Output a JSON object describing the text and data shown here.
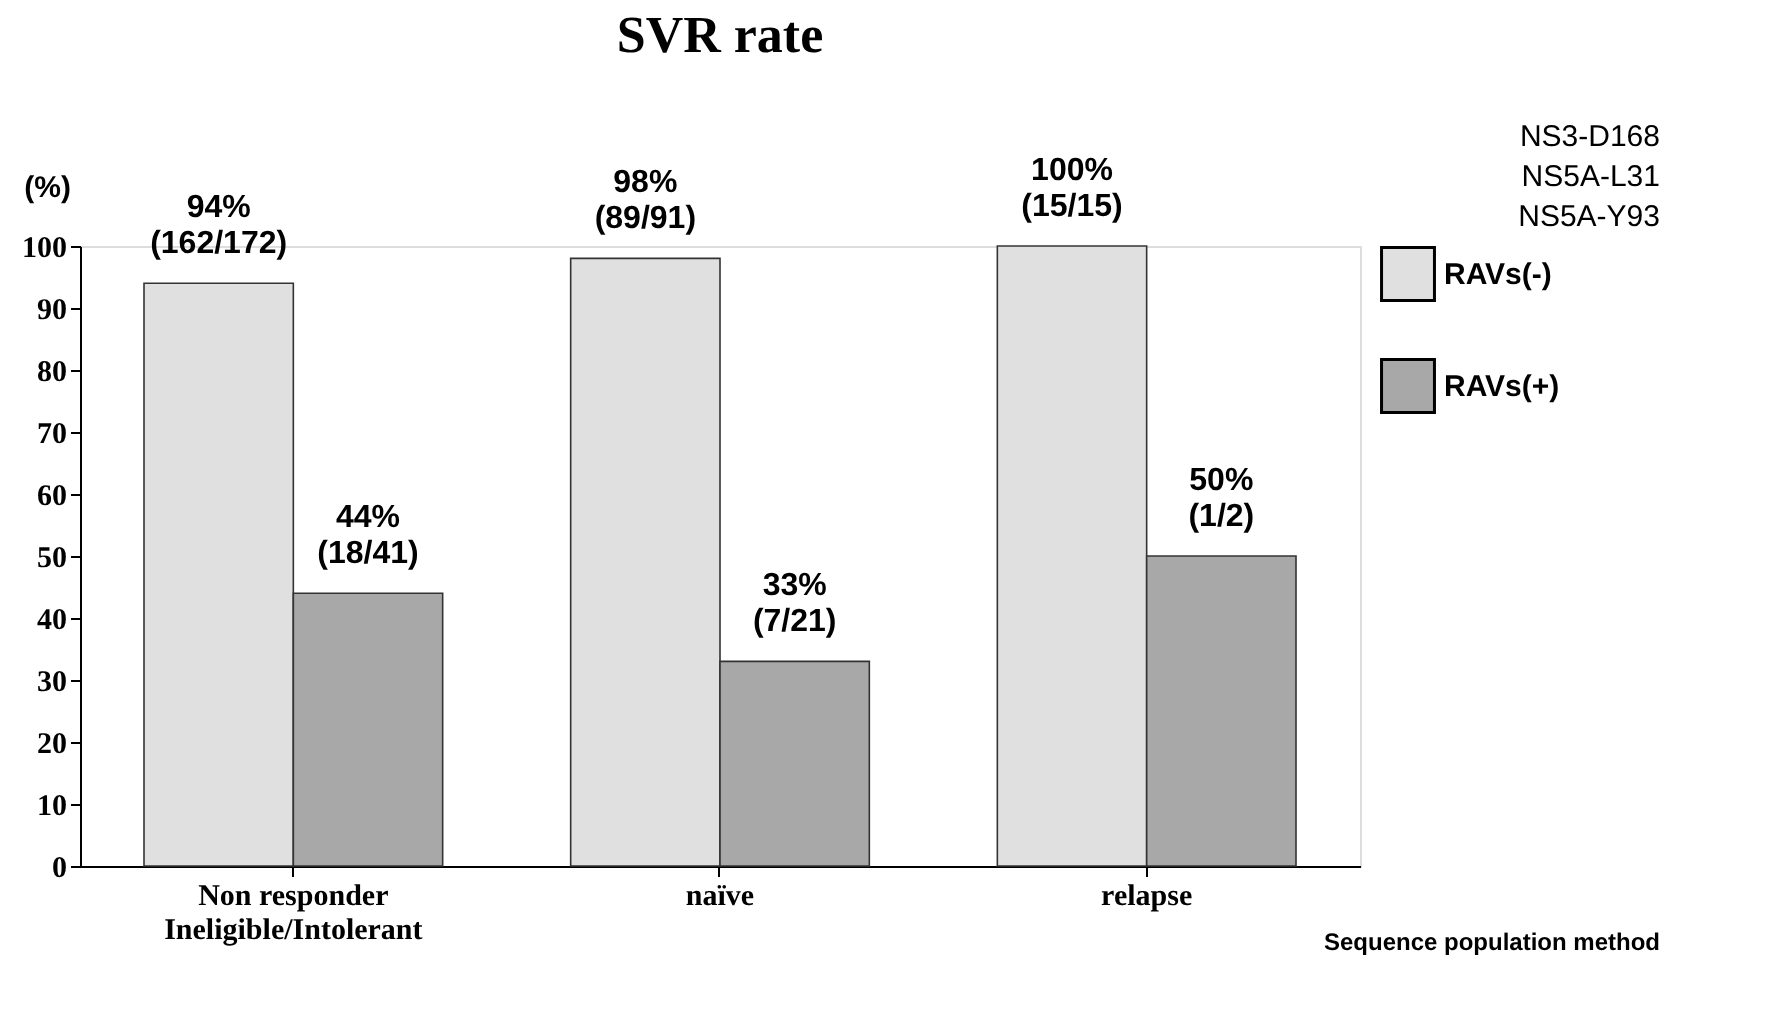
{
  "chart_data": {
    "type": "bar",
    "title": "SVR rate",
    "ylabel": "(%)",
    "categories": [
      "Non responder\nIneligible/Intolerant",
      "naïve",
      "relapse"
    ],
    "series": [
      {
        "name": "RAVs(-)",
        "color": "#e0e0e0",
        "values": [
          94,
          98,
          100
        ],
        "value_labels": [
          "94%\n(162/172)",
          "98%\n(89/91)",
          "100%\n(15/15)"
        ]
      },
      {
        "name": "RAVs(+)",
        "color": "#a8a8a8",
        "values": [
          44,
          33,
          50
        ],
        "value_labels": [
          "44%\n(18/41)",
          "33%\n(7/21)",
          "50%\n(1/2)"
        ]
      }
    ],
    "ylim": [
      0,
      100
    ],
    "yticks": [
      0,
      10,
      20,
      30,
      40,
      50,
      60,
      70,
      80,
      90,
      100
    ],
    "grid": false,
    "legend": "right",
    "annotations": [
      "NS3-D168\nNS5A-L31\nNS5A-Y93",
      "Sequence population method"
    ]
  }
}
